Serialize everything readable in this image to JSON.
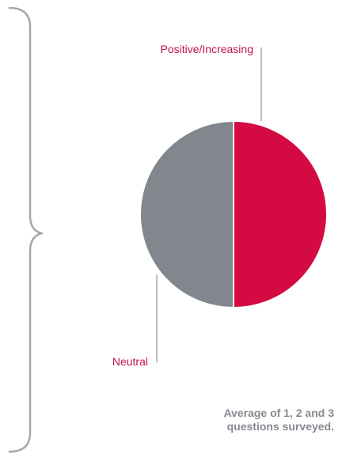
{
  "chart_data": {
    "type": "pie",
    "slices": [
      {
        "label": "Positive/Increasing",
        "value": 50,
        "color": "#d40a42"
      },
      {
        "label": "Neutral",
        "value": 50,
        "color": "#81878c"
      }
    ]
  },
  "footnote": {
    "line1": "Average of 1, 2 and 3",
    "line2": "questions surveyed."
  },
  "colors": {
    "bracket": "#a8a8a8",
    "leader_line": "#a8a8a8",
    "label_text": "#c2134a",
    "footnote_text": "#858a90",
    "slice_divider": "#ffffff"
  }
}
